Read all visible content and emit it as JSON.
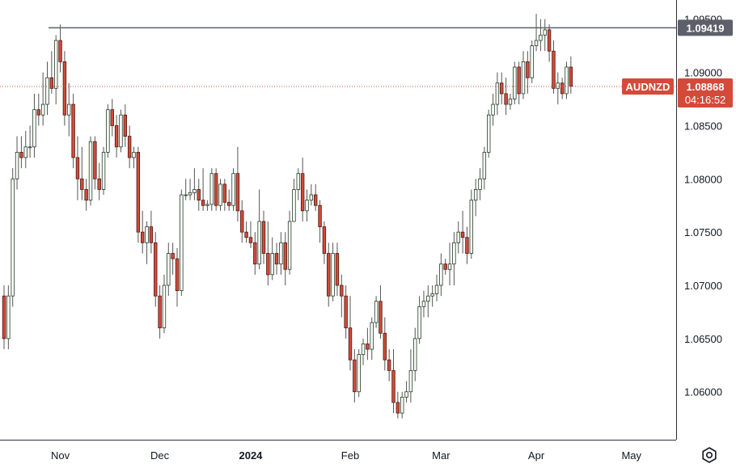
{
  "symbol": "AUDNZD",
  "price_label": "1.08868",
  "countdown": "04:16:52",
  "resistance_label": "1.09419",
  "colors": {
    "up": "#ffffff",
    "up_border": "#1f3b1f",
    "down": "#d44a3a",
    "down_border": "#4a1a14",
    "wick": "#555555",
    "resistance_line": "#5d606b",
    "price_line": "#d44a3a",
    "price_badge": "#d44a3a",
    "resistance_badge": "#5d606b"
  },
  "chart_data": {
    "type": "candlestick",
    "timeframe": "1D",
    "y_ticks": [
      "1.09500",
      "1.09000",
      "1.08500",
      "1.08000",
      "1.07500",
      "1.07000",
      "1.06500",
      "1.06000"
    ],
    "x_ticks": [
      {
        "label": "Nov",
        "bar": 13,
        "bold": false
      },
      {
        "label": "Dec",
        "bar": 36,
        "bold": false
      },
      {
        "label": "2024",
        "bar": 57,
        "bold": true
      },
      {
        "label": "Feb",
        "bar": 80,
        "bold": false
      },
      {
        "label": "Mar",
        "bar": 101,
        "bold": false
      },
      {
        "label": "Apr",
        "bar": 123,
        "bold": false
      },
      {
        "label": "May",
        "bar": 145,
        "bold": false
      }
    ],
    "ylim": [
      1.0555,
      1.0968
    ],
    "resistance": 1.09419,
    "last_price": 1.08868,
    "candles": [
      [
        1.069,
        1.07,
        1.064,
        1.065
      ],
      [
        1.065,
        1.07,
        1.064,
        1.069
      ],
      [
        1.069,
        1.081,
        1.068,
        1.08
      ],
      [
        1.08,
        1.084,
        1.079,
        1.0825
      ],
      [
        1.0825,
        1.084,
        1.081,
        1.082
      ],
      [
        1.082,
        1.0845,
        1.081,
        1.083
      ],
      [
        1.083,
        1.085,
        1.082,
        1.083
      ],
      [
        1.083,
        1.088,
        1.082,
        1.0865
      ],
      [
        1.0865,
        1.088,
        1.085,
        1.086
      ],
      [
        1.086,
        1.09,
        1.085,
        1.087
      ],
      [
        1.087,
        1.091,
        1.086,
        1.0895
      ],
      [
        1.0895,
        1.092,
        1.088,
        1.0885
      ],
      [
        1.0885,
        1.0935,
        1.087,
        1.093
      ],
      [
        1.093,
        1.0945,
        1.09,
        1.091
      ],
      [
        1.091,
        1.092,
        1.085,
        1.086
      ],
      [
        1.086,
        1.089,
        1.084,
        1.087
      ],
      [
        1.087,
        1.088,
        1.081,
        1.082
      ],
      [
        1.082,
        1.084,
        1.078,
        1.08
      ],
      [
        1.08,
        1.083,
        1.078,
        1.079
      ],
      [
        1.079,
        1.08,
        1.077,
        1.078
      ],
      [
        1.078,
        1.084,
        1.0775,
        1.0835
      ],
      [
        1.0835,
        1.084,
        1.079,
        1.08
      ],
      [
        1.08,
        1.0815,
        1.078,
        1.079
      ],
      [
        1.079,
        1.083,
        1.0785,
        1.0825
      ],
      [
        1.0825,
        1.087,
        1.082,
        1.0865
      ],
      [
        1.0865,
        1.0875,
        1.084,
        1.085
      ],
      [
        1.085,
        1.086,
        1.082,
        1.083
      ],
      [
        1.083,
        1.0865,
        1.0825,
        1.086
      ],
      [
        1.086,
        1.087,
        1.083,
        1.084
      ],
      [
        1.084,
        1.085,
        1.081,
        1.082
      ],
      [
        1.082,
        1.083,
        1.081,
        1.0825
      ],
      [
        1.0825,
        1.083,
        1.074,
        1.075
      ],
      [
        1.075,
        1.077,
        1.073,
        1.074
      ],
      [
        1.074,
        1.076,
        1.072,
        1.0755
      ],
      [
        1.0755,
        1.077,
        1.073,
        1.074
      ],
      [
        1.074,
        1.075,
        1.068,
        1.069
      ],
      [
        1.069,
        1.07,
        1.065,
        1.066
      ],
      [
        1.066,
        1.071,
        1.0655,
        1.07
      ],
      [
        1.07,
        1.074,
        1.069,
        1.073
      ],
      [
        1.073,
        1.074,
        1.071,
        1.0725
      ],
      [
        1.0725,
        1.0735,
        1.068,
        1.0695
      ],
      [
        1.0695,
        1.079,
        1.069,
        1.0785
      ],
      [
        1.0785,
        1.08,
        1.078,
        1.0785
      ],
      [
        1.0785,
        1.08,
        1.078,
        1.0787
      ],
      [
        1.0787,
        1.081,
        1.078,
        1.079
      ],
      [
        1.079,
        1.08,
        1.077,
        1.078
      ],
      [
        1.078,
        1.081,
        1.077,
        1.0775
      ],
      [
        1.0775,
        1.078,
        1.077,
        1.0776
      ],
      [
        1.0776,
        1.081,
        1.077,
        1.0805
      ],
      [
        1.0805,
        1.081,
        1.077,
        1.0775
      ],
      [
        1.0775,
        1.08,
        1.077,
        1.0795
      ],
      [
        1.0795,
        1.08,
        1.077,
        1.0778
      ],
      [
        1.0778,
        1.079,
        1.077,
        1.0775
      ],
      [
        1.0775,
        1.081,
        1.077,
        1.0805
      ],
      [
        1.0805,
        1.083,
        1.076,
        1.077
      ],
      [
        1.077,
        1.078,
        1.074,
        1.075
      ],
      [
        1.075,
        1.076,
        1.074,
        1.0745
      ],
      [
        1.0745,
        1.076,
        1.0735,
        1.074
      ],
      [
        1.074,
        1.075,
        1.071,
        1.072
      ],
      [
        1.072,
        1.079,
        1.0715,
        1.076
      ],
      [
        1.076,
        1.077,
        1.072,
        1.073
      ],
      [
        1.073,
        1.076,
        1.07,
        1.071
      ],
      [
        1.071,
        1.0745,
        1.0705,
        1.073
      ],
      [
        1.073,
        1.074,
        1.071,
        1.072
      ],
      [
        1.072,
        1.075,
        1.071,
        1.074
      ],
      [
        1.074,
        1.075,
        1.07,
        1.0715
      ],
      [
        1.0715,
        1.077,
        1.071,
        1.076
      ],
      [
        1.076,
        1.08,
        1.076,
        1.079
      ],
      [
        1.079,
        1.081,
        1.078,
        1.0805
      ],
      [
        1.0805,
        1.082,
        1.076,
        1.077
      ],
      [
        1.077,
        1.079,
        1.076,
        1.078
      ],
      [
        1.078,
        1.0795,
        1.0775,
        1.0785
      ],
      [
        1.0785,
        1.0795,
        1.077,
        1.0775
      ],
      [
        1.0775,
        1.078,
        1.074,
        1.0755
      ],
      [
        1.0755,
        1.076,
        1.072,
        1.073
      ],
      [
        1.073,
        1.074,
        1.068,
        1.069
      ],
      [
        1.069,
        1.074,
        1.0685,
        1.073
      ],
      [
        1.073,
        1.074,
        1.069,
        1.07
      ],
      [
        1.07,
        1.071,
        1.067,
        1.069
      ],
      [
        1.069,
        1.07,
        1.065,
        1.066
      ],
      [
        1.066,
        1.069,
        1.062,
        1.063
      ],
      [
        1.063,
        1.064,
        1.059,
        1.06
      ],
      [
        1.06,
        1.064,
        1.0595,
        1.0635
      ],
      [
        1.0635,
        1.065,
        1.0625,
        1.0645
      ],
      [
        1.0645,
        1.066,
        1.063,
        1.064
      ],
      [
        1.064,
        1.067,
        1.063,
        1.0665
      ],
      [
        1.0665,
        1.069,
        1.066,
        1.0685
      ],
      [
        1.0685,
        1.07,
        1.065,
        1.0655
      ],
      [
        1.0655,
        1.067,
        1.062,
        1.063
      ],
      [
        1.063,
        1.064,
        1.061,
        1.062
      ],
      [
        1.062,
        1.064,
        1.058,
        1.059
      ],
      [
        1.059,
        1.06,
        1.0575,
        1.058
      ],
      [
        1.058,
        1.06,
        1.0575,
        1.0595
      ],
      [
        1.0595,
        1.061,
        1.059,
        1.06
      ],
      [
        1.06,
        1.064,
        1.059,
        1.062
      ],
      [
        1.062,
        1.066,
        1.061,
        1.065
      ],
      [
        1.065,
        1.069,
        1.0645,
        1.068
      ],
      [
        1.068,
        1.0695,
        1.067,
        1.0685
      ],
      [
        1.0685,
        1.07,
        1.067,
        1.069
      ],
      [
        1.069,
        1.07,
        1.068,
        1.0692
      ],
      [
        1.0692,
        1.071,
        1.0685,
        1.07
      ],
      [
        1.07,
        1.073,
        1.069,
        1.072
      ],
      [
        1.072,
        1.0725,
        1.071,
        1.0715
      ],
      [
        1.0715,
        1.074,
        1.07,
        1.072
      ],
      [
        1.072,
        1.075,
        1.07,
        1.074
      ],
      [
        1.074,
        1.076,
        1.073,
        1.075
      ],
      [
        1.075,
        1.077,
        1.073,
        1.0745
      ],
      [
        1.0745,
        1.0755,
        1.072,
        1.073
      ],
      [
        1.073,
        1.079,
        1.0725,
        1.078
      ],
      [
        1.078,
        1.08,
        1.0765,
        1.079
      ],
      [
        1.079,
        1.081,
        1.078,
        1.08
      ],
      [
        1.08,
        1.083,
        1.079,
        1.0825
      ],
      [
        1.0825,
        1.0865,
        1.082,
        1.086
      ],
      [
        1.086,
        1.088,
        1.085,
        1.087
      ],
      [
        1.087,
        1.09,
        1.086,
        1.089
      ],
      [
        1.089,
        1.09,
        1.087,
        1.088
      ],
      [
        1.088,
        1.0895,
        1.086,
        1.087
      ],
      [
        1.087,
        1.088,
        1.0865,
        1.0875
      ],
      [
        1.0875,
        1.091,
        1.087,
        1.0905
      ],
      [
        1.0905,
        1.091,
        1.087,
        1.088
      ],
      [
        1.088,
        1.092,
        1.0875,
        1.091
      ],
      [
        1.091,
        1.092,
        1.088,
        1.0895
      ],
      [
        1.0895,
        1.093,
        1.089,
        1.0925
      ],
      [
        1.0925,
        1.0955,
        1.092,
        1.093
      ],
      [
        1.093,
        1.095,
        1.092,
        1.0935
      ],
      [
        1.0935,
        1.095,
        1.092,
        1.094
      ],
      [
        1.094,
        1.0945,
        1.091,
        1.092
      ],
      [
        1.092,
        1.093,
        1.088,
        1.0885
      ],
      [
        1.0885,
        1.09,
        1.087,
        1.089
      ],
      [
        1.089,
        1.0895,
        1.0875,
        1.088
      ],
      [
        1.088,
        1.091,
        1.0875,
        1.0905
      ],
      [
        1.0905,
        1.0915,
        1.088,
        1.0887
      ]
    ]
  }
}
